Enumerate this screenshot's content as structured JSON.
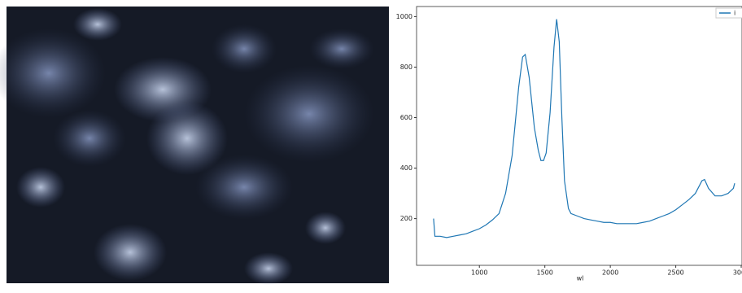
{
  "chart_data": {
    "type": "line",
    "x_label": "wl",
    "x": [
      650,
      660,
      700,
      750,
      800,
      850,
      900,
      950,
      1000,
      1050,
      1100,
      1150,
      1200,
      1250,
      1300,
      1330,
      1350,
      1380,
      1420,
      1450,
      1470,
      1490,
      1510,
      1540,
      1570,
      1590,
      1610,
      1630,
      1650,
      1680,
      1700,
      1750,
      1800,
      1850,
      1900,
      1950,
      2000,
      2050,
      2100,
      2150,
      2200,
      2250,
      2300,
      2350,
      2400,
      2450,
      2500,
      2550,
      2600,
      2650,
      2700,
      2720,
      2750,
      2800,
      2850,
      2900,
      2940,
      2950
    ],
    "series": [
      {
        "name": "i",
        "color": "#1f77b4",
        "values": [
          200,
          130,
          130,
          125,
          130,
          135,
          140,
          150,
          160,
          175,
          195,
          220,
          300,
          450,
          720,
          840,
          850,
          760,
          560,
          470,
          430,
          430,
          460,
          620,
          880,
          990,
          900,
          600,
          350,
          240,
          220,
          210,
          200,
          195,
          190,
          185,
          185,
          180,
          180,
          180,
          180,
          185,
          190,
          200,
          210,
          220,
          235,
          255,
          275,
          300,
          350,
          355,
          320,
          290,
          290,
          300,
          320,
          340
        ]
      }
    ],
    "xlim": [
      520,
      3006
    ],
    "ylim": [
      15,
      1040
    ],
    "xticks": [
      1000,
      1500,
      2000,
      2500,
      3000
    ],
    "yticks": [
      200,
      400,
      600,
      800,
      1000
    ],
    "legend": "upper right"
  }
}
